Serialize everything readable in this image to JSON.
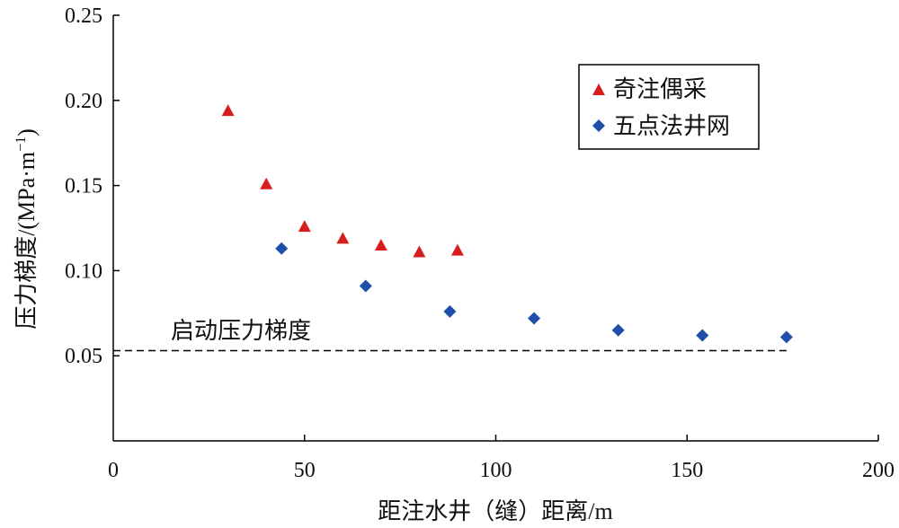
{
  "chart_data": {
    "type": "scatter",
    "xlabel": "距注水井（缝）距离/m",
    "ylabel": "压力梯度/(MPa·m",
    "ylabel_sup": "−1",
    "ylabel_close": ")",
    "xlim": [
      0,
      200
    ],
    "ylim": [
      0,
      0.25
    ],
    "x_ticks": [
      0,
      50,
      100,
      150,
      200
    ],
    "x_tick_labels": [
      "0",
      "50",
      "100",
      "150",
      "200"
    ],
    "y_ticks": [
      0.05,
      0.1,
      0.15,
      0.2,
      0.25
    ],
    "y_tick_labels": [
      "0.05",
      "0.10",
      "0.15",
      "0.20",
      "0.25"
    ],
    "grid": false,
    "legend_position": "top-right",
    "series": [
      {
        "name": "奇注偶采",
        "marker": "triangle",
        "color": "#d71e1e",
        "x": [
          30,
          40,
          50,
          60,
          70,
          80,
          90
        ],
        "y": [
          0.194,
          0.151,
          0.126,
          0.119,
          0.115,
          0.111,
          0.112
        ]
      },
      {
        "name": "五点法井网",
        "marker": "diamond",
        "color": "#1f4fa8",
        "x": [
          44,
          66,
          88,
          110,
          132,
          154,
          176
        ],
        "y": [
          0.113,
          0.091,
          0.076,
          0.072,
          0.065,
          0.062,
          0.061
        ]
      }
    ],
    "reference_line": {
      "label": "启动压力梯度",
      "y": 0.053,
      "x_start": 0,
      "x_end": 176,
      "style": "dashed"
    }
  }
}
